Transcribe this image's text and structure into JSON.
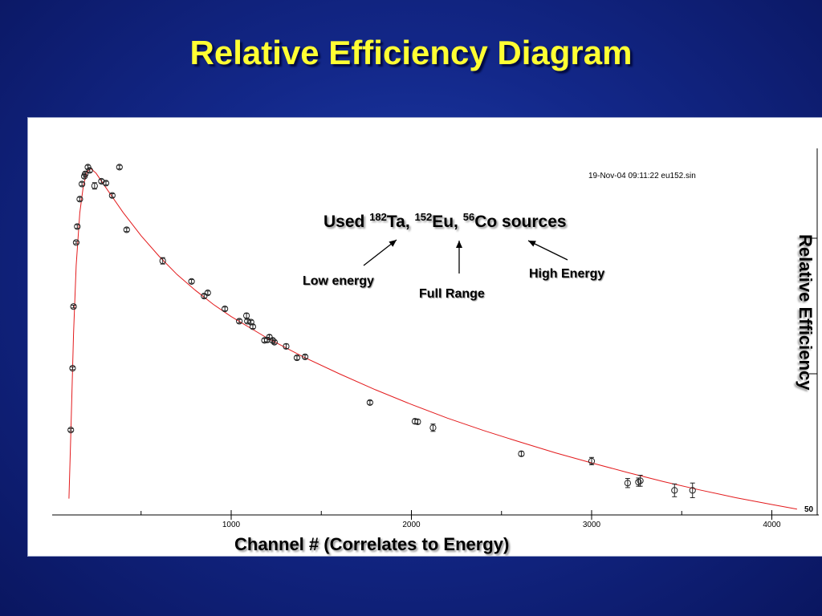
{
  "slide": {
    "title": "Relative Efficiency Diagram",
    "timestamp": "19-Nov-04 09:11:22  eu152.sin",
    "sources_prefix": "Used ",
    "iso1_mass": "182",
    "iso1_sym": "Ta, ",
    "iso2_mass": "152",
    "iso2_sym": "Eu, ",
    "iso3_mass": "56",
    "iso3_sym": "Co sources",
    "arrow_labels": {
      "low": "Low energy",
      "full": "Full Range",
      "high": "High Energy"
    }
  },
  "chart_data": {
    "type": "scatter",
    "xlabel": "Channel # (Correlates to Energy)",
    "ylabel": "Relative Efficiency",
    "x_ticks": [
      1000,
      2000,
      3000,
      4000
    ],
    "x_minor_ticks": [
      500,
      1500,
      2500,
      3500
    ],
    "y_tick_labels": [
      "50"
    ],
    "colors": {
      "fit": "#e31a1c",
      "points": "#222222",
      "axes": "#000000"
    },
    "points": [
      {
        "x": 110,
        "y": 170,
        "err": 3
      },
      {
        "x": 120,
        "y": 305,
        "err": 3
      },
      {
        "x": 125,
        "y": 440,
        "err": 3
      },
      {
        "x": 140,
        "y": 580,
        "err": 3
      },
      {
        "x": 146,
        "y": 615,
        "err": 4
      },
      {
        "x": 160,
        "y": 675,
        "err": 4
      },
      {
        "x": 172,
        "y": 708,
        "err": 4
      },
      {
        "x": 185,
        "y": 725,
        "err": 4
      },
      {
        "x": 190,
        "y": 730,
        "err": 4
      },
      {
        "x": 205,
        "y": 745,
        "err": 4
      },
      {
        "x": 215,
        "y": 738,
        "err": 4
      },
      {
        "x": 242,
        "y": 704,
        "err": 7
      },
      {
        "x": 280,
        "y": 714,
        "err": 4
      },
      {
        "x": 305,
        "y": 710,
        "err": 4
      },
      {
        "x": 340,
        "y": 683,
        "err": 4
      },
      {
        "x": 380,
        "y": 745,
        "err": 4
      },
      {
        "x": 420,
        "y": 608,
        "err": 4
      },
      {
        "x": 620,
        "y": 540,
        "err": 7
      },
      {
        "x": 780,
        "y": 495,
        "err": 4
      },
      {
        "x": 850,
        "y": 463,
        "err": 4
      },
      {
        "x": 870,
        "y": 470,
        "err": 4
      },
      {
        "x": 965,
        "y": 435,
        "err": 4
      },
      {
        "x": 1045,
        "y": 408,
        "err": 4
      },
      {
        "x": 1085,
        "y": 420,
        "err": 5
      },
      {
        "x": 1090,
        "y": 408,
        "err": 4
      },
      {
        "x": 1110,
        "y": 406,
        "err": 4
      },
      {
        "x": 1120,
        "y": 396,
        "err": 4
      },
      {
        "x": 1185,
        "y": 366,
        "err": 4
      },
      {
        "x": 1200,
        "y": 367,
        "err": 4
      },
      {
        "x": 1212,
        "y": 373,
        "err": 5
      },
      {
        "x": 1230,
        "y": 366,
        "err": 5
      },
      {
        "x": 1240,
        "y": 362,
        "err": 4
      },
      {
        "x": 1305,
        "y": 353,
        "err": 5
      },
      {
        "x": 1365,
        "y": 328,
        "err": 4
      },
      {
        "x": 1410,
        "y": 330,
        "err": 4
      },
      {
        "x": 1770,
        "y": 230,
        "err": 4
      },
      {
        "x": 2020,
        "y": 189,
        "err": 5
      },
      {
        "x": 2035,
        "y": 188,
        "err": 5
      },
      {
        "x": 2120,
        "y": 175,
        "err": 8
      },
      {
        "x": 2610,
        "y": 118,
        "err": 5
      },
      {
        "x": 3000,
        "y": 102,
        "err": 8
      },
      {
        "x": 3200,
        "y": 54,
        "err": 10
      },
      {
        "x": 3260,
        "y": 56,
        "err": 9
      },
      {
        "x": 3270,
        "y": 59,
        "err": 12
      },
      {
        "x": 3460,
        "y": 38,
        "err": 14
      },
      {
        "x": 3560,
        "y": 38,
        "err": 16
      }
    ],
    "fit_curve": [
      {
        "x": 100,
        "y": 20
      },
      {
        "x": 110,
        "y": 160
      },
      {
        "x": 125,
        "y": 380
      },
      {
        "x": 140,
        "y": 530
      },
      {
        "x": 160,
        "y": 645
      },
      {
        "x": 180,
        "y": 705
      },
      {
        "x": 200,
        "y": 735
      },
      {
        "x": 220,
        "y": 742
      },
      {
        "x": 250,
        "y": 732
      },
      {
        "x": 300,
        "y": 703
      },
      {
        "x": 400,
        "y": 646
      },
      {
        "x": 500,
        "y": 595
      },
      {
        "x": 600,
        "y": 550
      },
      {
        "x": 700,
        "y": 510
      },
      {
        "x": 800,
        "y": 476
      },
      {
        "x": 900,
        "y": 445
      },
      {
        "x": 1000,
        "y": 418
      },
      {
        "x": 1200,
        "y": 371
      },
      {
        "x": 1400,
        "y": 330
      },
      {
        "x": 1600,
        "y": 293
      },
      {
        "x": 1800,
        "y": 258
      },
      {
        "x": 2000,
        "y": 226
      },
      {
        "x": 2200,
        "y": 196
      },
      {
        "x": 2400,
        "y": 169
      },
      {
        "x": 2600,
        "y": 144
      },
      {
        "x": 2800,
        "y": 120
      },
      {
        "x": 3000,
        "y": 98
      },
      {
        "x": 3200,
        "y": 77
      },
      {
        "x": 3400,
        "y": 57
      },
      {
        "x": 3600,
        "y": 39
      },
      {
        "x": 3800,
        "y": 22
      },
      {
        "x": 4000,
        "y": 7
      },
      {
        "x": 4140,
        "y": -3
      }
    ],
    "xlim": [
      -50,
      4250
    ],
    "ylim": [
      -40,
      820
    ]
  }
}
